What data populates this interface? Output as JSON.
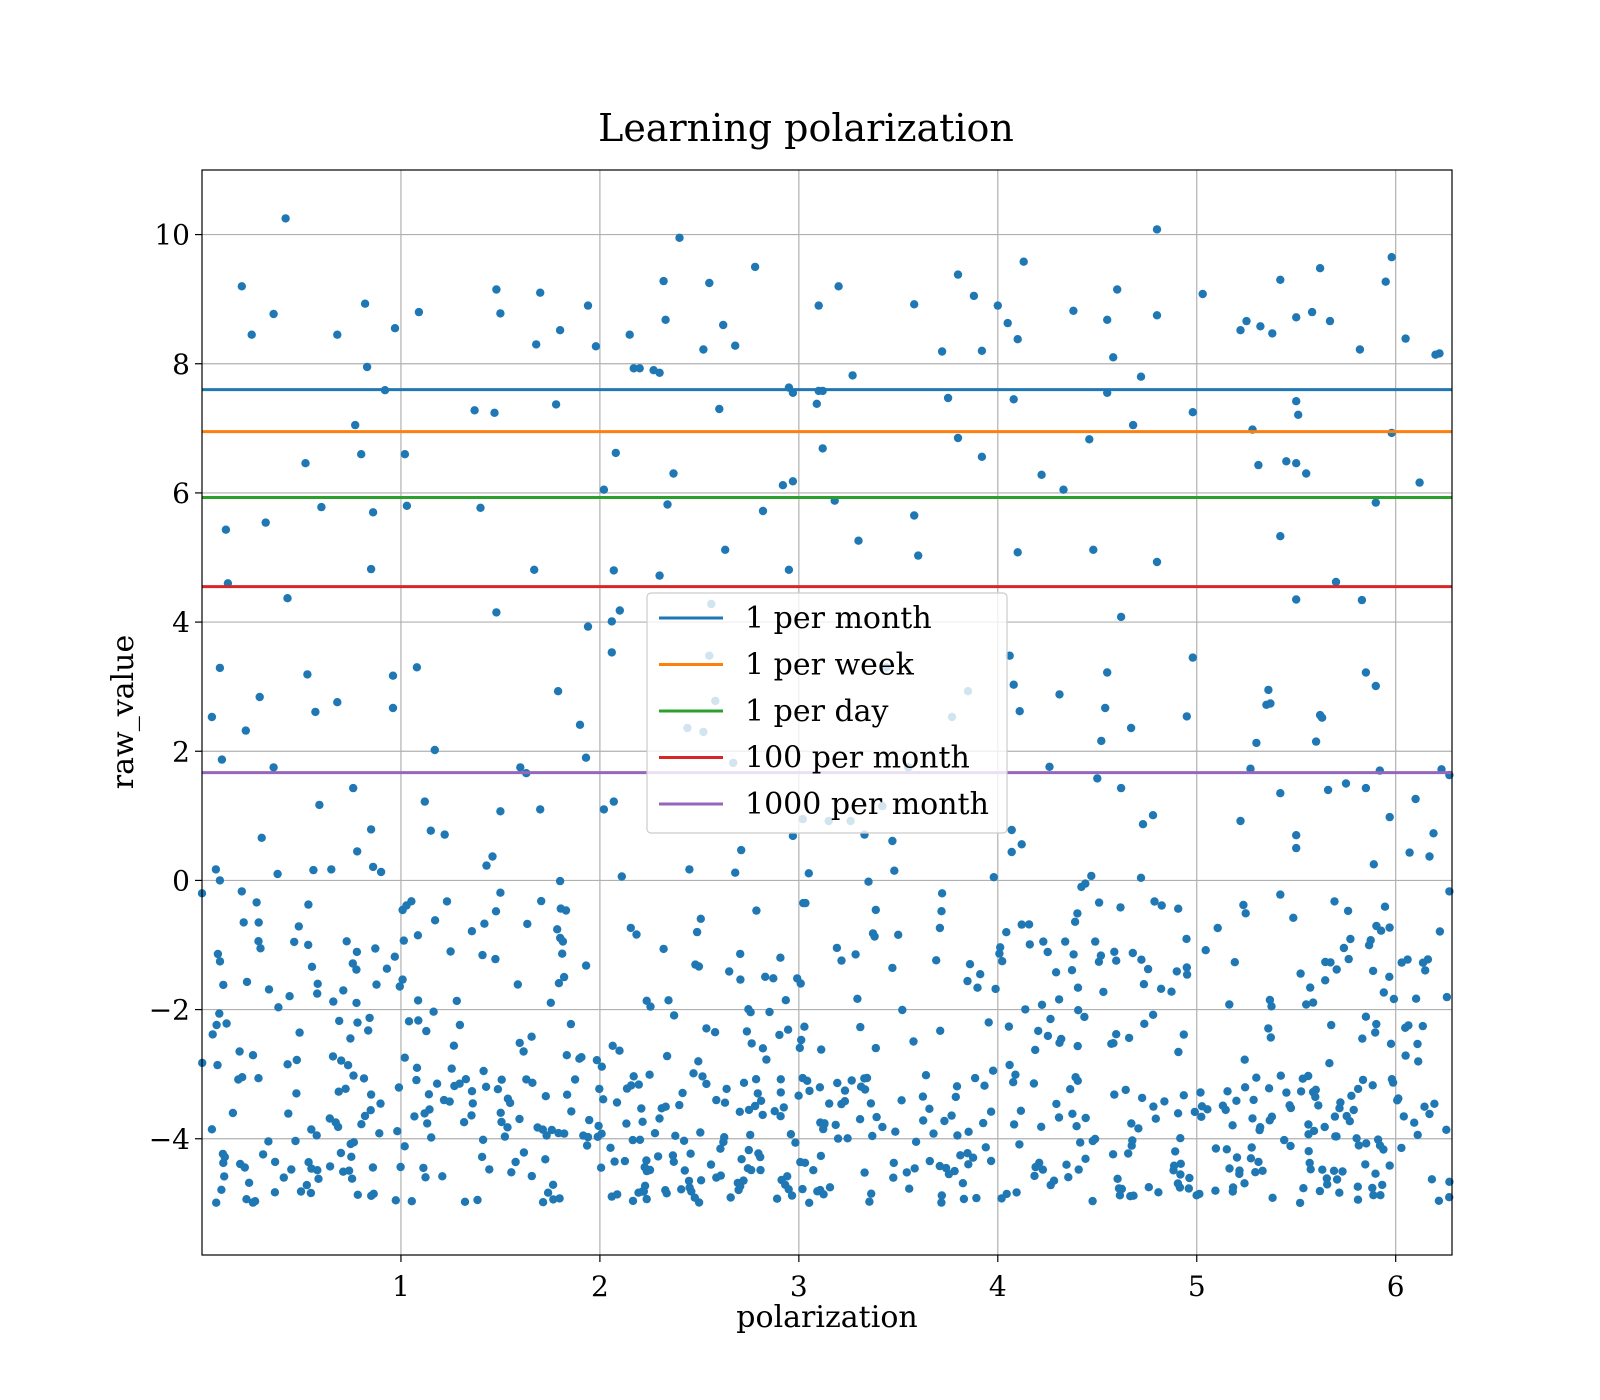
{
  "chart_data": {
    "type": "scatter",
    "title": "Learning polarization",
    "xlabel": "polarization",
    "ylabel": "raw_value",
    "xlim": [
      0,
      6.283
    ],
    "ylim": [
      -5.8,
      11.0
    ],
    "xticks": [
      1,
      2,
      3,
      4,
      5,
      6
    ],
    "yticks": [
      -4,
      -2,
      0,
      2,
      4,
      6,
      8,
      10
    ],
    "grid": true,
    "legend_position": "center",
    "point_color": "#1f77b4",
    "hlines": [
      {
        "name": "1 per month",
        "y": 7.6,
        "color": "#1f77b4"
      },
      {
        "name": "1 per week",
        "y": 6.95,
        "color": "#ff7f0e"
      },
      {
        "name": "1 per day",
        "y": 5.93,
        "color": "#2ca02c"
      },
      {
        "name": "100 per month",
        "y": 4.55,
        "color": "#d62728"
      },
      {
        "name": "1000 per month",
        "y": 1.67,
        "color": "#9467bd"
      }
    ],
    "points": [
      [
        0.42,
        10.25
      ],
      [
        4.8,
        10.08
      ],
      [
        2.4,
        9.95
      ],
      [
        5.98,
        9.65
      ],
      [
        4.13,
        9.58
      ],
      [
        2.78,
        9.5
      ],
      [
        5.62,
        9.48
      ],
      [
        3.8,
        9.38
      ],
      [
        0.2,
        9.2
      ],
      [
        1.48,
        9.15
      ],
      [
        1.7,
        9.1
      ],
      [
        3.2,
        9.2
      ],
      [
        2.55,
        9.25
      ],
      [
        5.95,
        9.27
      ],
      [
        5.42,
        9.3
      ],
      [
        4.6,
        9.15
      ],
      [
        5.03,
        9.08
      ],
      [
        3.88,
        9.05
      ],
      [
        2.32,
        9.28
      ],
      [
        1.94,
        8.9
      ],
      [
        0.82,
        8.93
      ],
      [
        1.09,
        8.8
      ],
      [
        1.5,
        8.78
      ],
      [
        3.1,
        8.9
      ],
      [
        3.58,
        8.92
      ],
      [
        4.0,
        8.9
      ],
      [
        4.38,
        8.82
      ],
      [
        5.25,
        8.66
      ],
      [
        5.5,
        8.72
      ],
      [
        5.58,
        8.8
      ],
      [
        5.67,
        8.66
      ],
      [
        0.36,
        8.77
      ],
      [
        0.25,
        8.45
      ],
      [
        0.68,
        8.45
      ],
      [
        0.97,
        8.55
      ],
      [
        1.68,
        8.3
      ],
      [
        1.8,
        8.52
      ],
      [
        1.98,
        8.27
      ],
      [
        2.15,
        8.45
      ],
      [
        2.33,
        8.68
      ],
      [
        2.62,
        8.6
      ],
      [
        2.68,
        8.28
      ],
      [
        2.52,
        8.22
      ],
      [
        3.72,
        8.19
      ],
      [
        3.92,
        8.2
      ],
      [
        4.05,
        8.63
      ],
      [
        4.1,
        8.38
      ],
      [
        4.55,
        8.68
      ],
      [
        4.58,
        8.1
      ],
      [
        4.8,
        8.75
      ],
      [
        5.22,
        8.52
      ],
      [
        5.32,
        8.58
      ],
      [
        5.38,
        8.47
      ],
      [
        5.82,
        8.22
      ],
      [
        6.05,
        8.39
      ],
      [
        6.22,
        8.16
      ],
      [
        6.2,
        8.14
      ],
      [
        0.83,
        7.95
      ],
      [
        2.17,
        7.93
      ],
      [
        2.2,
        7.93
      ],
      [
        2.27,
        7.9
      ],
      [
        2.3,
        7.86
      ],
      [
        3.27,
        7.82
      ],
      [
        4.72,
        7.8
      ],
      [
        0.92,
        7.59
      ],
      [
        2.95,
        7.63
      ],
      [
        3.1,
        7.58
      ],
      [
        4.55,
        7.55
      ],
      [
        2.97,
        7.55
      ],
      [
        3.12,
        7.58
      ],
      [
        3.75,
        7.47
      ],
      [
        4.08,
        7.45
      ],
      [
        5.5,
        7.42
      ],
      [
        1.78,
        7.37
      ],
      [
        3.09,
        7.38
      ],
      [
        1.37,
        7.28
      ],
      [
        1.47,
        7.24
      ],
      [
        2.6,
        7.3
      ],
      [
        4.98,
        7.25
      ],
      [
        5.51,
        7.21
      ],
      [
        0.77,
        7.05
      ],
      [
        4.68,
        7.05
      ],
      [
        5.28,
        6.98
      ],
      [
        5.98,
        6.93
      ],
      [
        3.8,
        6.85
      ],
      [
        4.46,
        6.83
      ],
      [
        3.12,
        6.69
      ],
      [
        0.8,
        6.6
      ],
      [
        1.02,
        6.6
      ],
      [
        2.08,
        6.62
      ],
      [
        3.92,
        6.56
      ],
      [
        0.52,
        6.46
      ],
      [
        5.31,
        6.43
      ],
      [
        5.45,
        6.49
      ],
      [
        5.5,
        6.46
      ],
      [
        5.55,
        6.3
      ],
      [
        2.37,
        6.3
      ],
      [
        4.22,
        6.28
      ],
      [
        2.92,
        6.12
      ],
      [
        2.97,
        6.18
      ],
      [
        6.12,
        6.16
      ],
      [
        4.33,
        6.05
      ],
      [
        2.02,
        6.05
      ],
      [
        3.18,
        5.88
      ],
      [
        5.9,
        5.85
      ],
      [
        2.34,
        5.82
      ],
      [
        0.6,
        5.78
      ],
      [
        1.03,
        5.8
      ],
      [
        1.4,
        5.77
      ],
      [
        2.82,
        5.72
      ],
      [
        0.86,
        5.7
      ],
      [
        3.58,
        5.65
      ],
      [
        0.32,
        5.54
      ],
      [
        5.42,
        5.33
      ],
      [
        0.12,
        5.43
      ],
      [
        3.3,
        5.26
      ],
      [
        2.63,
        5.12
      ],
      [
        4.1,
        5.08
      ],
      [
        4.48,
        5.12
      ],
      [
        3.6,
        5.03
      ],
      [
        4.8,
        4.93
      ],
      [
        0.85,
        4.82
      ],
      [
        1.67,
        4.81
      ],
      [
        2.07,
        4.8
      ],
      [
        2.95,
        4.81
      ],
      [
        2.3,
        4.72
      ],
      [
        0.13,
        4.6
      ],
      [
        5.7,
        4.62
      ],
      [
        0.43,
        4.37
      ],
      [
        5.5,
        4.35
      ],
      [
        5.83,
        4.34
      ],
      [
        2.56,
        4.28
      ],
      [
        1.48,
        4.15
      ],
      [
        2.1,
        4.18
      ],
      [
        4.62,
        4.08
      ],
      [
        2.06,
        4.01
      ],
      [
        1.94,
        3.93
      ],
      [
        2.06,
        3.53
      ],
      [
        2.55,
        3.48
      ],
      [
        4.06,
        3.48
      ],
      [
        4.98,
        3.45
      ],
      [
        3.44,
        3.3
      ],
      [
        0.09,
        3.29
      ],
      [
        1.08,
        3.3
      ],
      [
        0.53,
        3.19
      ],
      [
        0.96,
        3.17
      ],
      [
        4.55,
        3.22
      ],
      [
        5.85,
        3.22
      ],
      [
        4.08,
        3.03
      ],
      [
        5.9,
        3.01
      ],
      [
        1.79,
        2.93
      ],
      [
        3.85,
        2.93
      ],
      [
        5.36,
        2.95
      ],
      [
        0.29,
        2.84
      ],
      [
        0.68,
        2.76
      ],
      [
        2.58,
        2.78
      ],
      [
        4.31,
        2.88
      ],
      [
        5.35,
        2.72
      ],
      [
        5.37,
        2.74
      ],
      [
        4.54,
        2.67
      ],
      [
        0.96,
        2.67
      ],
      [
        0.57,
        2.61
      ],
      [
        4.11,
        2.62
      ],
      [
        5.62,
        2.56
      ],
      [
        5.63,
        2.52
      ],
      [
        0.05,
        2.53
      ],
      [
        3.77,
        2.53
      ],
      [
        4.95,
        2.54
      ],
      [
        1.9,
        2.41
      ],
      [
        2.44,
        2.36
      ],
      [
        2.52,
        2.3
      ],
      [
        4.67,
        2.36
      ],
      [
        0.22,
        2.32
      ],
      [
        4.52,
        2.16
      ],
      [
        5.3,
        2.13
      ],
      [
        5.6,
        2.15
      ],
      [
        1.17,
        2.02
      ],
      [
        1.93,
        1.9
      ],
      [
        0.1,
        1.87
      ],
      [
        2.67,
        1.82
      ],
      [
        0.36,
        1.75
      ],
      [
        4.26,
        1.76
      ],
      [
        1.6,
        1.75
      ],
      [
        5.27,
        1.73
      ],
      [
        6.23,
        1.72
      ],
      [
        5.92,
        1.7
      ],
      [
        6.27,
        1.63
      ],
      [
        1.63,
        1.66
      ],
      [
        4.5,
        1.58
      ],
      [
        3.55,
        1.75
      ],
      [
        5.75,
        1.5
      ],
      [
        0.76,
        1.43
      ],
      [
        5.66,
        1.4
      ],
      [
        5.85,
        1.43
      ],
      [
        5.42,
        1.35
      ],
      [
        4.62,
        1.43
      ],
      [
        6.1,
        1.26
      ],
      [
        2.07,
        1.22
      ],
      [
        1.12,
        1.22
      ],
      [
        2.02,
        1.1
      ],
      [
        1.5,
        1.07
      ],
      [
        1.7,
        1.1
      ],
      [
        0.59,
        1.17
      ],
      [
        3.42,
        1.15
      ],
      [
        5.97,
        0.98
      ],
      [
        4.78,
        1.01
      ],
      [
        4.73,
        0.87
      ],
      [
        3.02,
        0.95
      ],
      [
        3.15,
        0.92
      ],
      [
        3.26,
        0.92
      ],
      [
        4.07,
        0.78
      ],
      [
        5.22,
        0.92
      ],
      [
        5.5,
        0.7
      ],
      [
        5.5,
        0.5
      ],
      [
        6.19,
        0.73
      ],
      [
        0.3,
        0.66
      ],
      [
        0.85,
        0.79
      ],
      [
        1.15,
        0.77
      ],
      [
        1.22,
        0.71
      ],
      [
        2.97,
        0.69
      ],
      [
        3.33,
        0.71
      ],
      [
        4.12,
        0.56
      ],
      [
        4.07,
        0.44
      ],
      [
        6.07,
        0.43
      ],
      [
        6.17,
        0.37
      ],
      [
        0.78,
        0.45
      ],
      [
        1.46,
        0.37
      ],
      [
        2.71,
        0.47
      ],
      [
        3.47,
        0.61
      ],
      [
        1.43,
        0.23
      ],
      [
        5.89,
        0.25
      ],
      [
        0.07,
        0.17
      ],
      [
        0.56,
        0.16
      ],
      [
        0.65,
        0.17
      ],
      [
        0.86,
        0.21
      ],
      [
        0.9,
        0.13
      ],
      [
        3.05,
        0.11
      ],
      [
        3.48,
        0.15
      ],
      [
        2.45,
        0.17
      ],
      [
        0.38,
        0.1
      ],
      [
        2.68,
        0.12
      ],
      [
        2.11,
        0.06
      ],
      [
        4.47,
        0.07
      ],
      [
        3.98,
        0.05
      ],
      [
        4.72,
        0.04
      ],
      [
        0.09,
        0.0
      ],
      [
        1.8,
        -0.01
      ],
      [
        3.35,
        -0.02
      ],
      [
        4.44,
        -0.05
      ],
      [
        4.42,
        -0.1
      ],
      [
        0.0,
        -0.2
      ],
      [
        0.2,
        -0.17
      ],
      [
        5.42,
        -0.22
      ],
      [
        1.5,
        -0.19
      ],
      [
        3.72,
        -0.2
      ],
      [
        6.27,
        -0.17
      ]
    ],
    "dense_cloud": {
      "x_range": [
        0,
        6.283
      ],
      "y_range": [
        -5.0,
        -0.3
      ],
      "count": 760
    }
  }
}
